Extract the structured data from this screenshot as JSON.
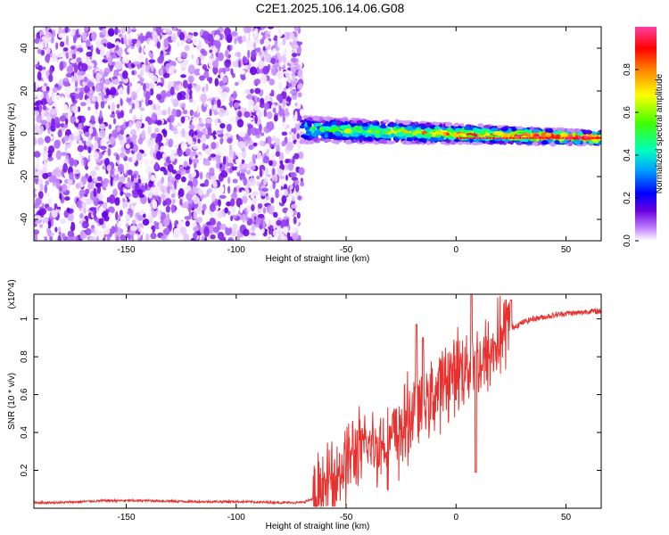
{
  "figure_title": "C2E1.2025.106.14.06.G08",
  "chart_data": [
    {
      "type": "heatmap",
      "xlabel": "Height of straight line (km)",
      "ylabel": "Frequency (Hz)",
      "xlim": [
        -192,
        66
      ],
      "ylim": [
        -50,
        50
      ],
      "xticks": [
        -150,
        -100,
        -50,
        0,
        50
      ],
      "yticks": [
        -40,
        -20,
        0,
        20,
        40
      ],
      "colorbar": {
        "label": "Normalized spectral amplitude",
        "range": [
          0.0,
          1.0
        ],
        "ticks": [
          0.0,
          0.2,
          0.4,
          0.6,
          0.8
        ],
        "tick_labels": [
          "0.0",
          "0.2",
          "0.4",
          "0.6",
          "0.8"
        ],
        "colormap": [
          "#ffffff",
          "#c080ff",
          "#6a00e0",
          "#0000ff",
          "#00a0ff",
          "#00ffc0",
          "#40ff00",
          "#ffff00",
          "#ff8000",
          "#ff0000",
          "#ff40a0"
        ]
      },
      "regions": [
        {
          "x_range": [
            -192,
            -70
          ],
          "description": "broadband noise",
          "amplitude_range": [
            0.0,
            0.15
          ]
        },
        {
          "x_range": [
            -70,
            66
          ],
          "description": "narrow band near 0 Hz",
          "center_frequency_hz": [
            2,
            -2
          ],
          "bandwidth_hz": [
            6,
            3
          ],
          "peak_amplitude": 0.95
        }
      ]
    },
    {
      "type": "line",
      "xlabel": "Height of straight line (km)",
      "ylabel": "SNR (10 * v/v)",
      "y_multiplier": "(x10^4)",
      "xlim": [
        -192,
        66
      ],
      "ylim": [
        0,
        1.13
      ],
      "xticks": [
        -150,
        -100,
        -50,
        0,
        50
      ],
      "yticks": [
        0.2,
        0.4,
        0.6,
        0.8,
        1.0
      ],
      "ytick_labels": [
        "0.2",
        "0.4",
        "0.6",
        "0.8",
        "1"
      ],
      "series": [
        {
          "color": "#e8312e",
          "x": [
            -192,
            -180,
            -160,
            -140,
            -120,
            -100,
            -80,
            -70,
            -65,
            -60,
            -55,
            -50,
            -45,
            -40,
            -35,
            -30,
            -25,
            -20,
            -15,
            -10,
            -5,
            0,
            5,
            10,
            15,
            20,
            25,
            30,
            35,
            40,
            45,
            50,
            55,
            60,
            66
          ],
          "y": [
            0.03,
            0.03,
            0.04,
            0.04,
            0.035,
            0.035,
            0.03,
            0.03,
            0.05,
            0.1,
            0.18,
            0.25,
            0.3,
            0.32,
            0.33,
            0.36,
            0.4,
            0.5,
            0.55,
            0.6,
            0.68,
            0.72,
            0.77,
            0.76,
            0.8,
            0.9,
            0.95,
            0.98,
            1.0,
            1.01,
            1.02,
            1.03,
            1.03,
            1.04,
            1.04
          ]
        }
      ],
      "spikes": [
        {
          "x": -18,
          "y": 0.97
        },
        {
          "x": -15,
          "y": 0.9
        },
        {
          "x": 7,
          "y": 1.13
        },
        {
          "x": 9,
          "y": 0.19
        },
        {
          "x": 25,
          "y": 1.1
        }
      ]
    }
  ]
}
